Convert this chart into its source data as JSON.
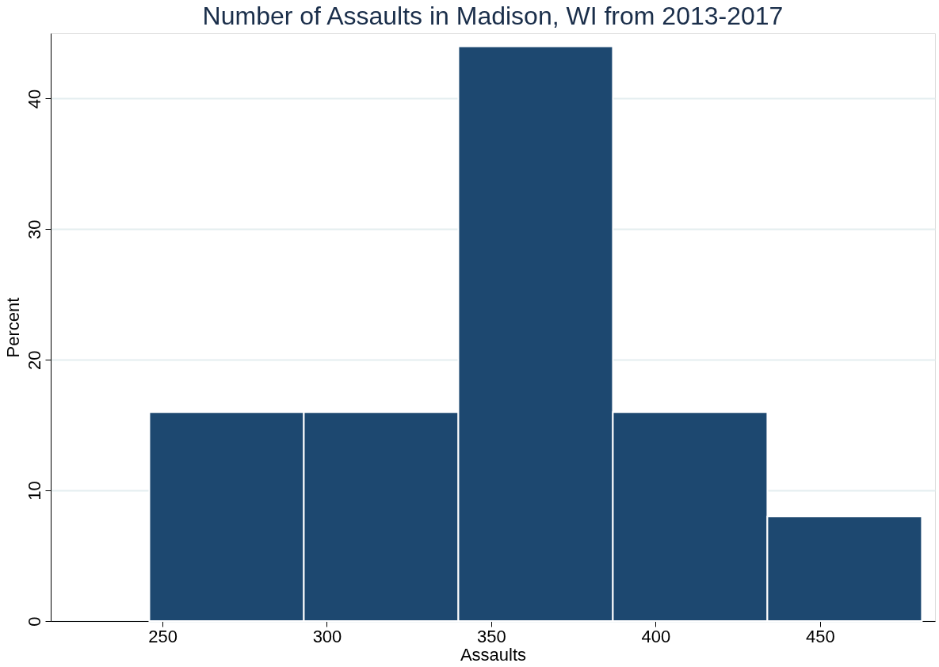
{
  "chart_data": {
    "type": "histogram",
    "title": "Number of Assaults in Madison, WI from 2013-2017",
    "xlabel": "Assaults",
    "ylabel": "Percent",
    "bins": [
      246,
      293,
      340,
      387,
      434,
      481
    ],
    "values": [
      16,
      16,
      44,
      16,
      8
    ],
    "color": "#1d4870",
    "xlim": [
      216,
      485
    ],
    "xticks": [
      250,
      300,
      350,
      400,
      450
    ],
    "ylim": [
      0,
      45
    ],
    "yticks": [
      0,
      10,
      20,
      30,
      40
    ],
    "grid": "y"
  }
}
